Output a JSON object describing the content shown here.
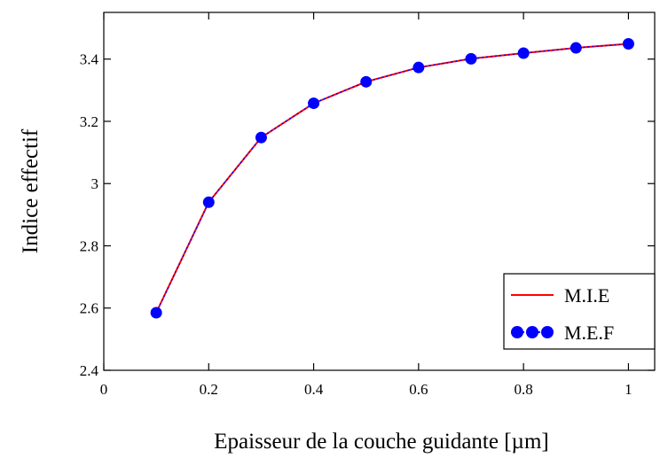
{
  "chart_data": {
    "type": "line",
    "xlabel": "Epaisseur de la couche guidante [µm]",
    "ylabel": "Indice effectif",
    "xlim": [
      0,
      1.05
    ],
    "ylim": [
      2.4,
      3.55
    ],
    "x_ticks": [
      "0",
      "0.2",
      "0.4",
      "0.6",
      "0.8",
      "1"
    ],
    "y_ticks": [
      "2.4",
      "2.6",
      "2.8",
      "3",
      "3.2",
      "3.4"
    ],
    "grid": false,
    "legend_position": "bottom-right",
    "series": [
      {
        "name": "M.I.E",
        "style": "line",
        "color": "#ff0000",
        "x": [
          0.1,
          0.2,
          0.3,
          0.4,
          0.5,
          0.6,
          0.7,
          0.8,
          0.9,
          1.0
        ],
        "y": [
          2.585,
          2.94,
          3.148,
          3.258,
          3.327,
          3.373,
          3.401,
          3.419,
          3.436,
          3.449
        ]
      },
      {
        "name": "M.E.F",
        "style": "dots",
        "color": "#0000ff",
        "x": [
          0.1,
          0.2,
          0.3,
          0.4,
          0.5,
          0.6,
          0.7,
          0.8,
          0.9,
          1.0
        ],
        "y": [
          2.585,
          2.94,
          3.148,
          3.258,
          3.327,
          3.373,
          3.401,
          3.419,
          3.436,
          3.449
        ]
      }
    ]
  }
}
